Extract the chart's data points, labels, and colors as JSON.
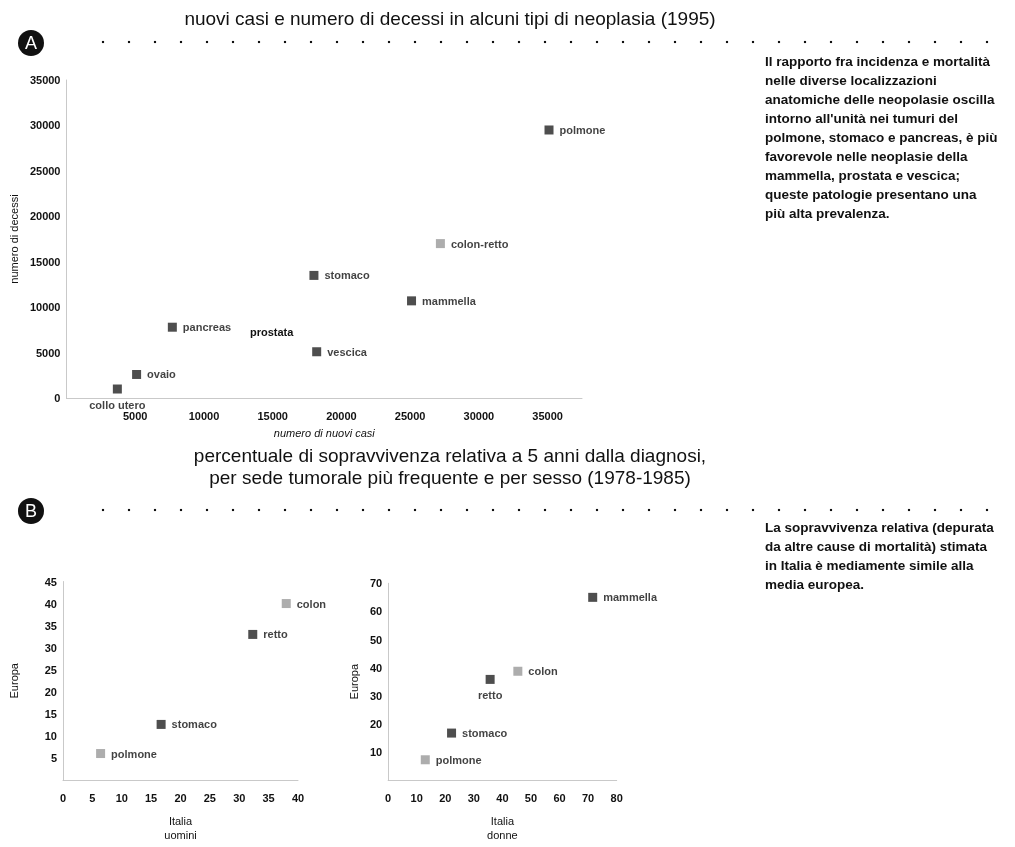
{
  "chart_data": [
    {
      "type": "scatter",
      "title": "nuovi casi e numero di decessi in alcuni tipi di neoplasia (1995)",
      "xlabel": "numero di nuovi casi",
      "ylabel": "numero di decessi",
      "annotations": [
        "A",
        "prostata"
      ],
      "marker": "square",
      "grid": false,
      "legend": false,
      "xlim": [
        0,
        37500
      ],
      "xticks": [
        5000,
        10000,
        15000,
        20000,
        25000,
        30000,
        35000
      ],
      "ylim": [
        0,
        35000
      ],
      "yticks": [
        0,
        5000,
        10000,
        15000,
        20000,
        25000,
        30000,
        35000
      ],
      "series": [
        {
          "name": "polmone",
          "color": "#222222",
          "x": [
            35100
          ],
          "values": [
            29500
          ]
        },
        {
          "name": "colon-retto",
          "color": "#999999",
          "x": [
            27200
          ],
          "values": [
            17000
          ]
        },
        {
          "name": "stomaco",
          "color": "#222222",
          "x": [
            18000
          ],
          "values": [
            13500
          ]
        },
        {
          "name": "mammella",
          "color": "#222222",
          "x": [
            25100
          ],
          "values": [
            10700
          ]
        },
        {
          "name": "pancreas",
          "color": "#222222",
          "x": [
            7700
          ],
          "values": [
            7800
          ]
        },
        {
          "name": "vescica",
          "color": "#222222",
          "x": [
            18200
          ],
          "values": [
            5100
          ]
        },
        {
          "name": "ovaio",
          "color": "#222222",
          "x": [
            5100
          ],
          "values": [
            2600
          ]
        },
        {
          "name": "collo utero",
          "color": "#222222",
          "x": [
            3700
          ],
          "values": [
            1000
          ]
        }
      ]
    },
    {
      "type": "other",
      "annotations": [
        "Il rapporto fra incidenza e mortalità nelle diverse localizzazioni anatomiche delle neopolasie oscilla intorno all'unità nei tumuri del polmone, stomaco e pancreas, è più favorevole nelle neoplasie della mammella, prostata e vescica; queste patologie presentano una più alta prevalenza."
      ]
    },
    {
      "type": "scatter",
      "title": "percentuale di sopravvivenza relativa a 5 anni dalla diagnosi,\nper sede tumorale più frequente e per sesso (1978-1985)",
      "xlabel": "Italia\nuomini",
      "ylabel": "Europa",
      "annotations": [
        "B"
      ],
      "marker": "square",
      "grid": false,
      "legend": false,
      "xlim": [
        0,
        40
      ],
      "xticks": [
        0,
        5,
        10,
        15,
        20,
        25,
        30,
        35,
        40
      ],
      "ylim": [
        0,
        45
      ],
      "yticks": [
        5,
        10,
        15,
        20,
        25,
        30,
        35,
        40,
        45
      ],
      "series": [
        {
          "name": "colon",
          "color": "#999999",
          "x": [
            38
          ],
          "values": [
            40
          ]
        },
        {
          "name": "retto",
          "color": "#222222",
          "x": [
            32.3
          ],
          "values": [
            33
          ]
        },
        {
          "name": "stomaco",
          "color": "#222222",
          "x": [
            16.7
          ],
          "values": [
            12.6
          ]
        },
        {
          "name": "polmone",
          "color": "#999999",
          "x": [
            6.4
          ],
          "values": [
            6
          ]
        }
      ]
    },
    {
      "type": "scatter",
      "xlabel": "Italia\ndonne",
      "ylabel": "Europa",
      "marker": "square",
      "grid": false,
      "legend": false,
      "xlim": [
        0,
        80
      ],
      "xticks": [
        0,
        10,
        20,
        30,
        40,
        50,
        60,
        70,
        80
      ],
      "ylim": [
        0,
        70
      ],
      "yticks": [
        10,
        20,
        30,
        40,
        50,
        60,
        70
      ],
      "series": [
        {
          "name": "mammella",
          "color": "#222222",
          "x": [
            71.6
          ],
          "values": [
            65
          ]
        },
        {
          "name": "colon",
          "color": "#999999",
          "x": [
            45.4
          ],
          "values": [
            38.7
          ]
        },
        {
          "name": "retto",
          "color": "#222222",
          "x": [
            35.7
          ],
          "values": [
            35.8
          ]
        },
        {
          "name": "stomaco",
          "color": "#222222",
          "x": [
            22.2
          ],
          "values": [
            16.7
          ]
        },
        {
          "name": "polmone",
          "color": "#999999",
          "x": [
            13
          ],
          "values": [
            7.2
          ]
        }
      ]
    },
    {
      "type": "other",
      "annotations": [
        "La sopravvivenza relativa (depurata da altre cause di mortalità) stimata in Italia è mediamente simile alla media europea."
      ]
    }
  ]
}
